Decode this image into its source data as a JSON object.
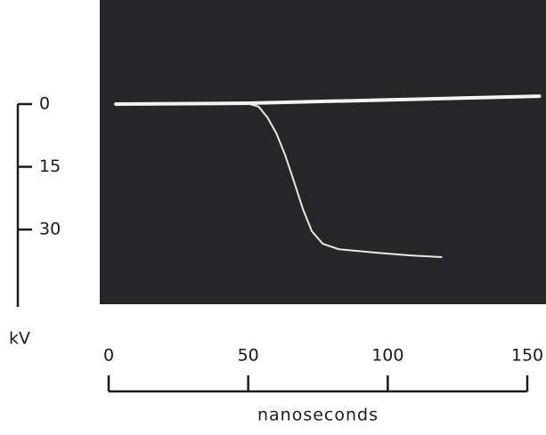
{
  "chart_data": {
    "type": "line",
    "xlabel": "nanoseconds",
    "ylabel": "kV",
    "xlim": [
      0,
      150
    ],
    "xticks": [
      0,
      50,
      100,
      150
    ],
    "ylim": [
      48.5,
      0
    ],
    "yticks": [
      0,
      15,
      30
    ],
    "series": [
      {
        "color": "#f4f4f0",
        "x": [
          2.6,
          50.5,
          154.3
        ],
        "values": [
          0,
          -0.2,
          -1.9
        ]
      },
      {
        "color": "#e8e8e2",
        "x": [
          50.5,
          53.7,
          56.9,
          60.1,
          63.3,
          66.5,
          69.6,
          72.8,
          76.7,
          82.4,
          95.2,
          108,
          119.2
        ],
        "values": [
          0,
          0.6,
          3.2,
          7,
          12.3,
          18.7,
          25.1,
          30.4,
          33.4,
          34.7,
          35.5,
          36.2,
          36.6
        ]
      }
    ]
  }
}
